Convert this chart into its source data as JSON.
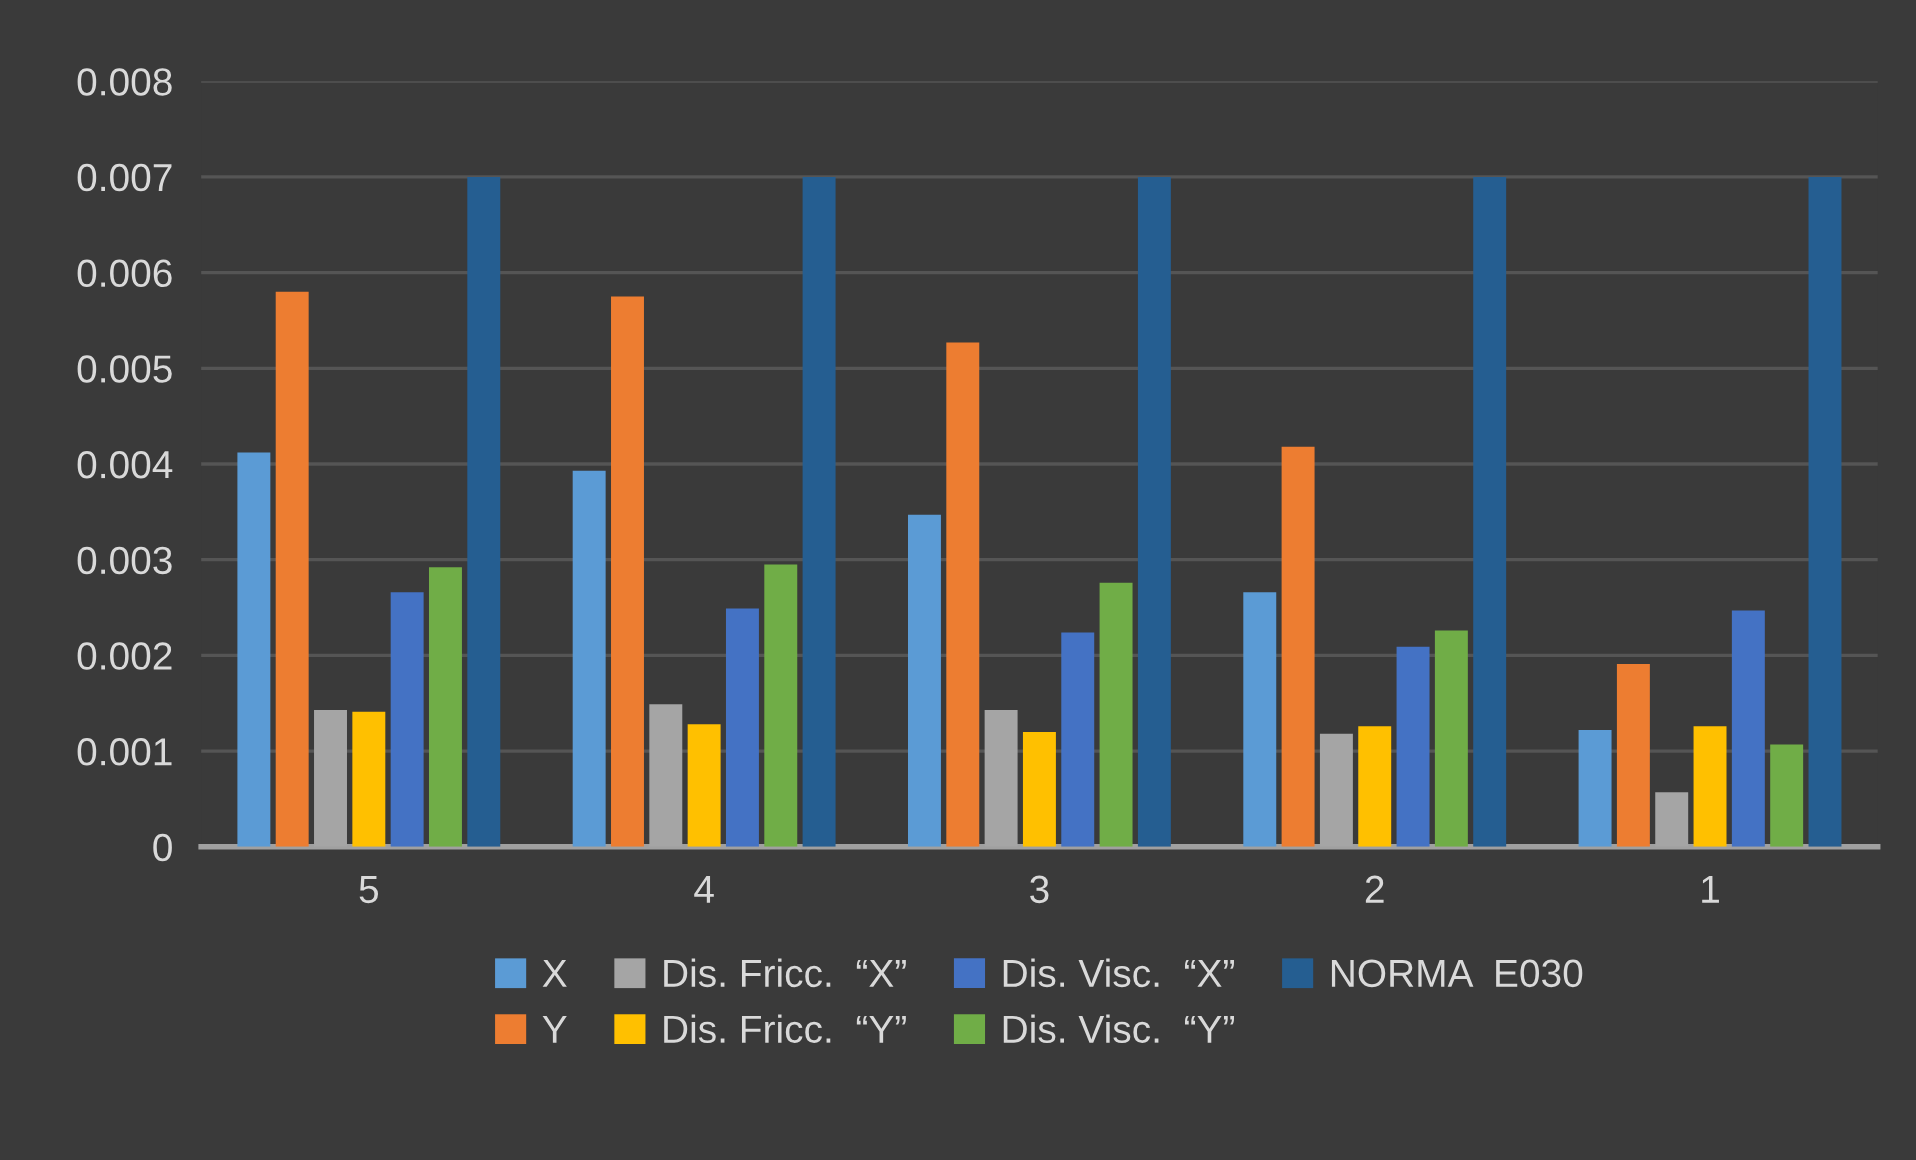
{
  "chart_data": {
    "type": "bar",
    "categories": [
      "5",
      "4",
      "3",
      "2",
      "1"
    ],
    "series": [
      {
        "name": "X",
        "color": "#5b9bd5",
        "values": [
          0.00412,
          0.00393,
          0.00347,
          0.00266,
          0.00122
        ]
      },
      {
        "name": "Y",
        "color": "#ed7d31",
        "values": [
          0.0058,
          0.00575,
          0.00527,
          0.00418,
          0.00191
        ]
      },
      {
        "name": "Dis. Fricc.  “X”",
        "color": "#a5a5a5",
        "values": [
          0.00143,
          0.00149,
          0.00143,
          0.00118,
          0.00057
        ]
      },
      {
        "name": "Dis. Fricc.  “Y”",
        "color": "#ffc000",
        "values": [
          0.00141,
          0.00128,
          0.0012,
          0.00126,
          0.00126
        ]
      },
      {
        "name": "Dis. Visc.  “X”",
        "color": "#4472c4",
        "values": [
          0.00266,
          0.00249,
          0.00224,
          0.00209,
          0.00247
        ]
      },
      {
        "name": "Dis. Visc.  “Y”",
        "color": "#70ad47",
        "values": [
          0.00292,
          0.00295,
          0.00276,
          0.00226,
          0.00107
        ]
      },
      {
        "name": "NORMA  E030",
        "color": "#255e91",
        "values": [
          0.007,
          0.007,
          0.007,
          0.007,
          0.007
        ]
      }
    ],
    "ylim": [
      0,
      0.008
    ],
    "yticks": [
      0,
      0.001,
      0.002,
      0.003,
      0.004,
      0.005,
      0.006,
      0.007,
      0.008
    ],
    "grid": "y",
    "legend": "bottom"
  }
}
